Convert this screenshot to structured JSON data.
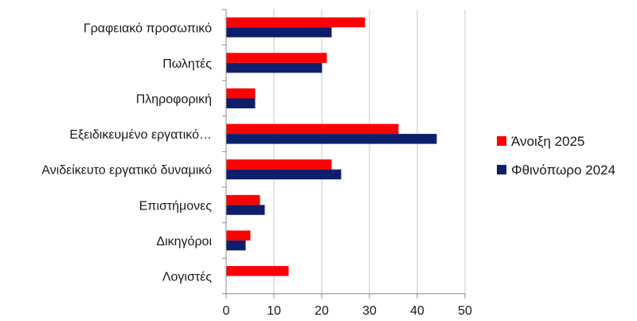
{
  "chart_data": {
    "type": "bar",
    "orientation": "horizontal",
    "categories": [
      "Γραφειακό προσωπικό",
      "Πωλητές",
      "Πληροφορική",
      "Εξειδικευμένο εργατικό…",
      "Ανιδείκευτο εργατικό δυναμικό",
      "Επιστήμονες",
      "Δικηγόροι",
      "Λογιστές"
    ],
    "series": [
      {
        "name": "Άνοιξη 2025",
        "color": "#ff0000",
        "values": [
          29,
          21,
          6,
          36,
          22,
          7,
          5,
          13
        ]
      },
      {
        "name": "Φθινόπωρο 2024",
        "color": "#0d1f6b",
        "values": [
          22,
          20,
          6,
          44,
          24,
          8,
          4,
          0
        ]
      }
    ],
    "xlim": [
      0,
      50
    ],
    "xticks": [
      0,
      10,
      20,
      30,
      40,
      50
    ],
    "grid": true,
    "legend": "right",
    "title": "",
    "xlabel": "",
    "ylabel": ""
  }
}
